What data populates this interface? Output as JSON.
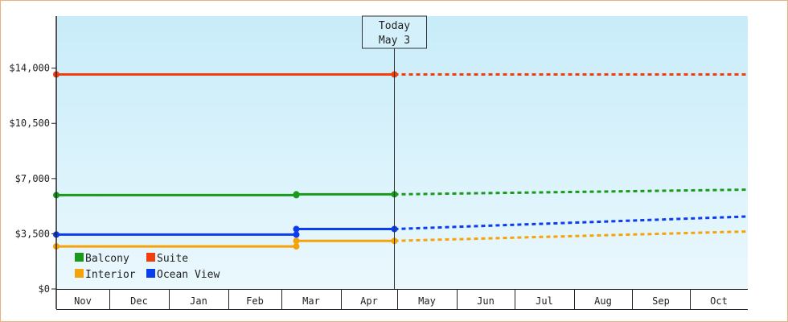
{
  "chart_data": {
    "type": "line",
    "title": "",
    "xlabel": "",
    "ylabel": "",
    "y_ticks": [
      "$0",
      "$3,500",
      "$7,000",
      "$10,500",
      "$14,000"
    ],
    "ylim": [
      0,
      17300
    ],
    "months": [
      "Nov",
      "Dec",
      "Jan",
      "Feb",
      "Mar",
      "Apr",
      "May",
      "Jun",
      "Jul",
      "Aug",
      "Sep",
      "Oct"
    ],
    "today": {
      "line1": "Today",
      "line2": "May 3",
      "x": 5.95
    },
    "background": {
      "top": "#c8ecf9",
      "bottom": "#eaf8fd"
    },
    "legend": {
      "placement": "bottom-left"
    },
    "series": [
      {
        "name": "Balcony",
        "color": "#1a9a1a",
        "actual": [
          [
            0,
            5950
          ],
          [
            4.25,
            5950
          ],
          [
            4.25,
            6000
          ],
          [
            5.95,
            6000
          ]
        ],
        "forecast": [
          [
            5.95,
            6000
          ],
          [
            12.5,
            6300
          ]
        ]
      },
      {
        "name": "Suite",
        "color": "#f23e0c",
        "actual": [
          [
            0,
            13600
          ],
          [
            5.95,
            13600
          ]
        ],
        "forecast": [
          [
            5.95,
            13600
          ],
          [
            12.5,
            13600
          ]
        ]
      },
      {
        "name": "Interior",
        "color": "#f5a30a",
        "actual": [
          [
            0,
            2700
          ],
          [
            4.25,
            2700
          ],
          [
            4.25,
            3050
          ],
          [
            5.95,
            3050
          ]
        ],
        "forecast": [
          [
            5.95,
            3050
          ],
          [
            12.5,
            3650
          ]
        ]
      },
      {
        "name": "Ocean View",
        "color": "#0a3cf0",
        "actual": [
          [
            0,
            3450
          ],
          [
            4.25,
            3450
          ],
          [
            4.25,
            3800
          ],
          [
            5.95,
            3800
          ]
        ],
        "forecast": [
          [
            5.95,
            3800
          ],
          [
            12.5,
            4600
          ]
        ]
      }
    ]
  }
}
